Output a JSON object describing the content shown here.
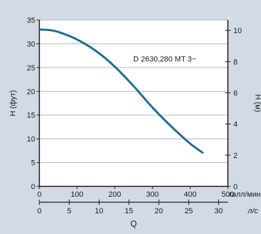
{
  "colors": {
    "background": "#d3dae6",
    "plot_area": "#ffffff",
    "grid": "#a9b6cc",
    "axis": "#1a1a1a",
    "curve": "#1f6d8c"
  },
  "chart_data": {
    "type": "line",
    "title": "",
    "curve_label": "D 2630,280 MT 3~",
    "left_axis": {
      "label": "H (фут)",
      "range": [
        0,
        35
      ],
      "ticks": [
        0,
        5,
        10,
        15,
        20,
        25,
        30,
        35
      ]
    },
    "right_axis": {
      "label": "H (м)",
      "range": [
        0,
        10.668
      ],
      "ticks": [
        0,
        2,
        4,
        6,
        8,
        10
      ]
    },
    "x_axis_primary": {
      "unit_label": "галл/мин",
      "range": [
        0,
        500
      ],
      "ticks": [
        0,
        100,
        200,
        300,
        400,
        500
      ]
    },
    "x_axis_secondary": {
      "unit_label": "л/с",
      "range": [
        0,
        31.55
      ],
      "ticks": [
        0,
        5,
        10,
        15,
        20,
        25,
        30
      ]
    },
    "x_axis_title": "Q",
    "grid": true,
    "series": [
      {
        "x": [
          0,
          25,
          50,
          100,
          150,
          200,
          250,
          300,
          350,
          400,
          435
        ],
        "y": [
          33,
          32.9,
          32.5,
          30.9,
          28.5,
          25.2,
          21.1,
          16.6,
          12.6,
          9.0,
          7.0
        ]
      }
    ]
  }
}
